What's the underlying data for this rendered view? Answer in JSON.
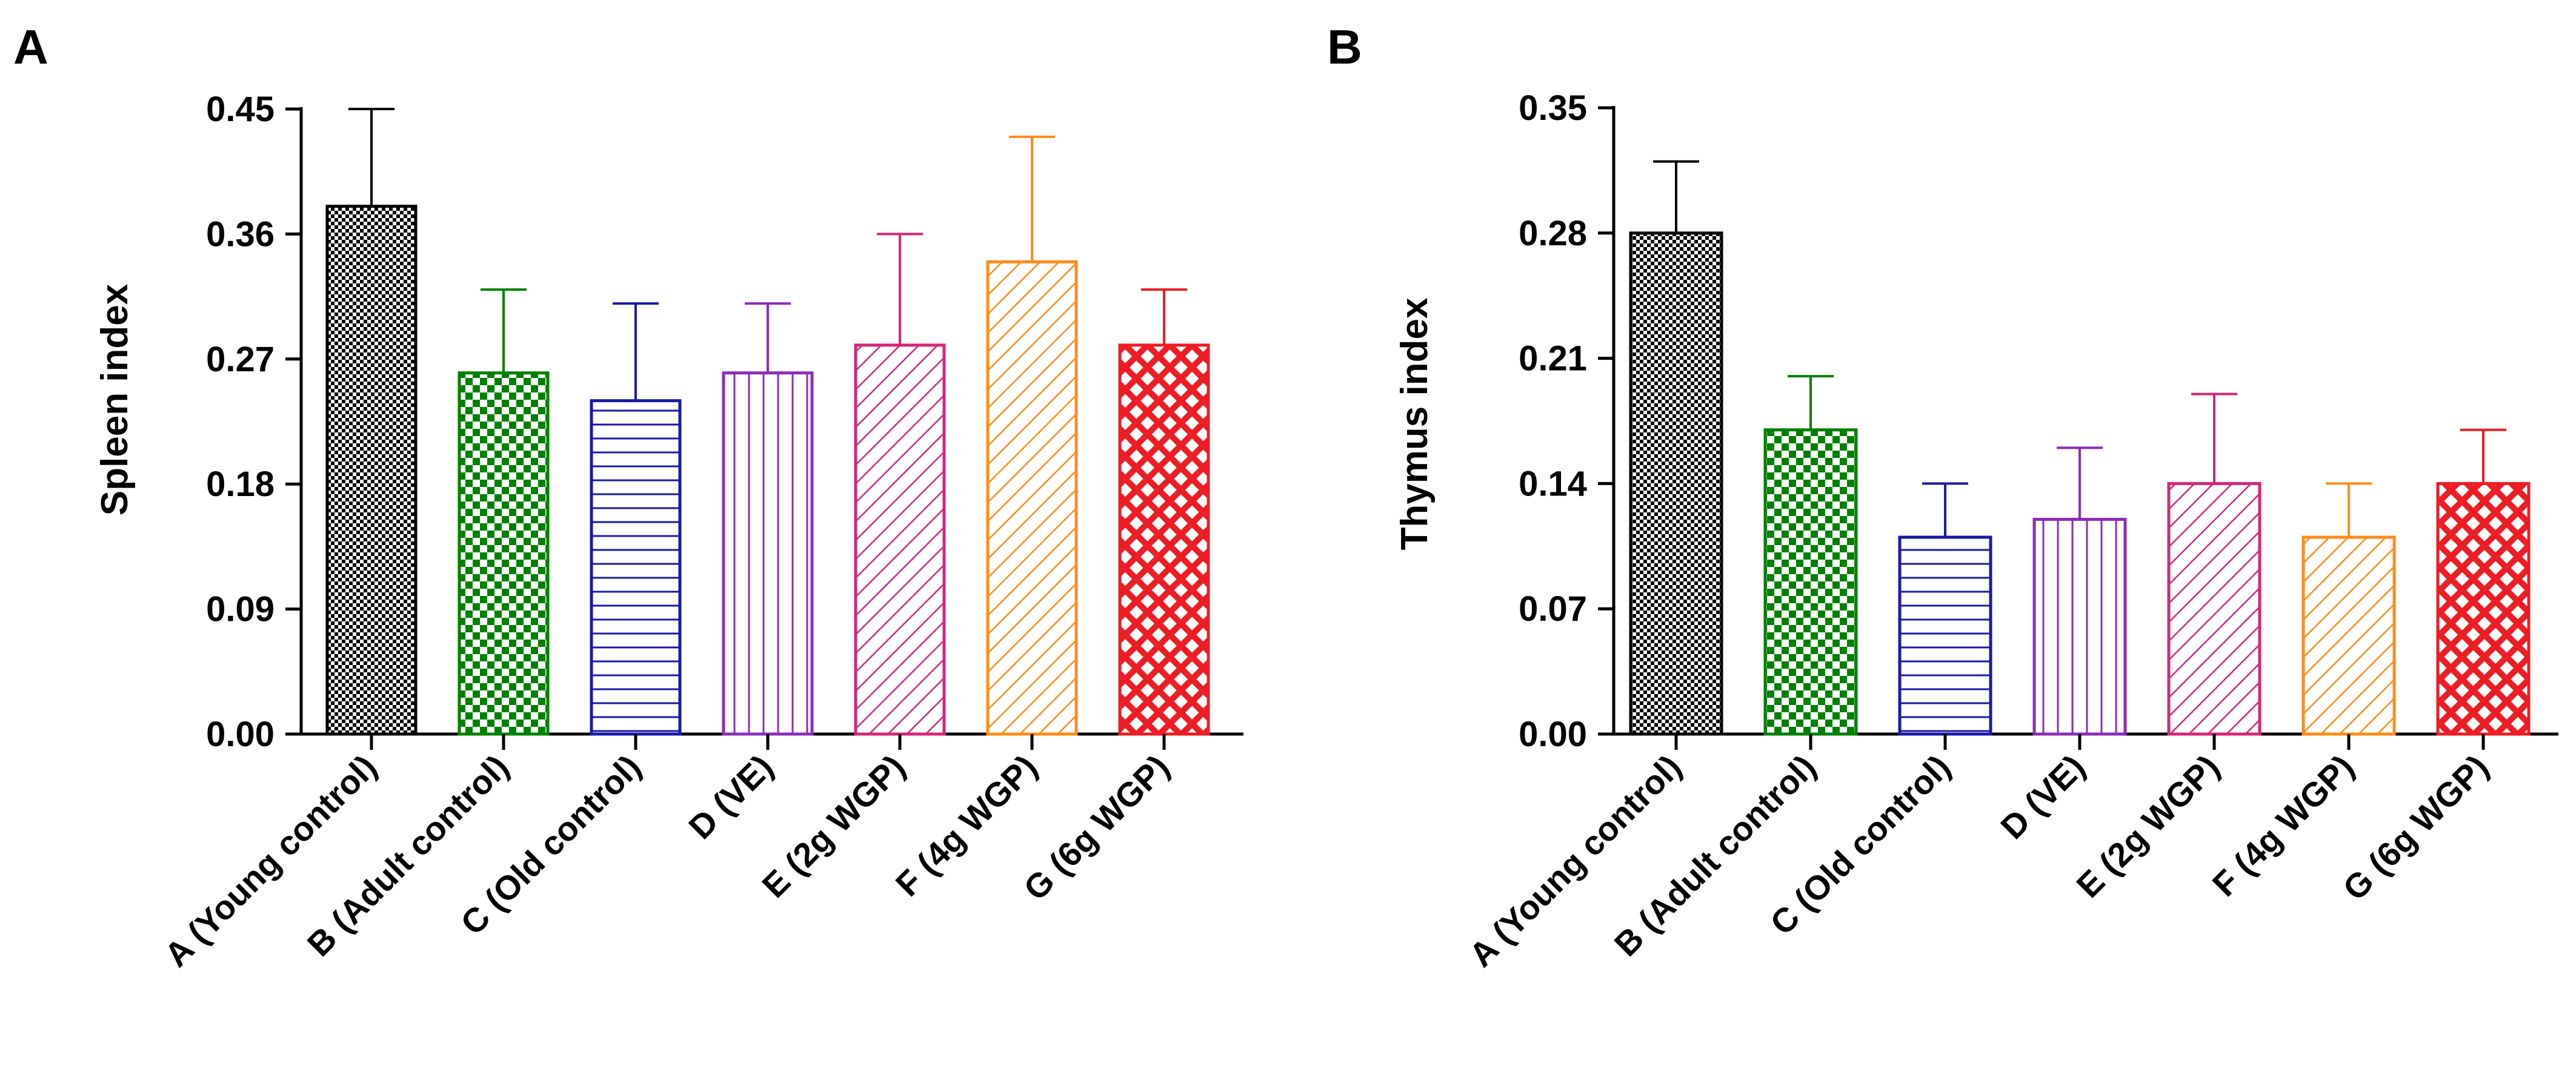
{
  "chart_data": [
    {
      "type": "bar",
      "panel_label": "A",
      "title": "",
      "xlabel": "",
      "ylabel": "Spleen index",
      "ylim": [
        0,
        0.45
      ],
      "yticks": [
        "0.00",
        "0.09",
        "0.18",
        "0.27",
        "0.36",
        "0.45"
      ],
      "categories": [
        "A (Young control)",
        "B (Adult control)",
        "C (Old control)",
        "D (VE)",
        "E (2g WGP)",
        "F (4g WGP)",
        "G (6g WGP)"
      ],
      "values": [
        0.38,
        0.26,
        0.24,
        0.26,
        0.28,
        0.34,
        0.28
      ],
      "error_upper": [
        0.45,
        0.32,
        0.31,
        0.31,
        0.36,
        0.43,
        0.32
      ],
      "colors": [
        "#000000",
        "#008000",
        "#1a1aa6",
        "#8b2db8",
        "#d6267a",
        "#ff8c1a",
        "#ee1c25"
      ],
      "patterns": [
        "checker-small",
        "checker-large",
        "horizontal",
        "vertical",
        "diagonal",
        "diagonal",
        "crosshatch"
      ]
    },
    {
      "type": "bar",
      "panel_label": "B",
      "title": "",
      "xlabel": "",
      "ylabel": "Thymus index",
      "ylim": [
        0,
        0.35
      ],
      "yticks": [
        "0.00",
        "0.07",
        "0.14",
        "0.21",
        "0.28",
        "0.35"
      ],
      "categories": [
        "A (Young control)",
        "B (Adult control)",
        "C (Old control)",
        "D (VE)",
        "E (2g WGP)",
        "F (4g WGP)",
        "G (6g WGP)"
      ],
      "values": [
        0.28,
        0.17,
        0.11,
        0.12,
        0.14,
        0.11,
        0.14
      ],
      "error_upper": [
        0.32,
        0.2,
        0.14,
        0.16,
        0.19,
        0.14,
        0.17
      ],
      "colors": [
        "#000000",
        "#008000",
        "#1a1aa6",
        "#8b2db8",
        "#d6267a",
        "#ff8c1a",
        "#ee1c25"
      ],
      "patterns": [
        "checker-small",
        "checker-large",
        "horizontal",
        "vertical",
        "diagonal",
        "diagonal",
        "crosshatch"
      ]
    }
  ]
}
